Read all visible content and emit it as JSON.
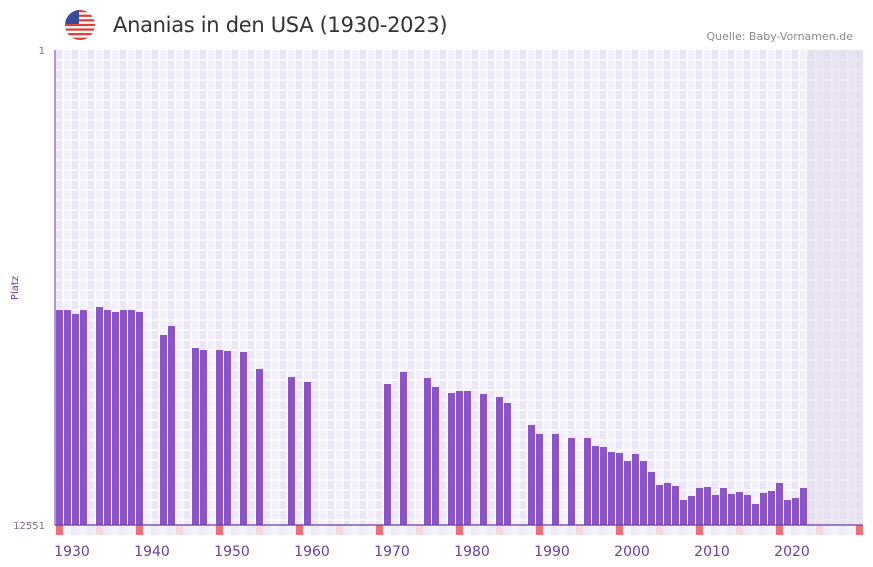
{
  "header": {
    "title": "Ananias in den USA (1930-2023)",
    "source": "Quelle: Baby-Vornamen.de",
    "flag_icon": "us-flag-icon"
  },
  "colors": {
    "bar": "#8b55c6",
    "axis": "#6b3fa0",
    "decade_marker": "#e8737a",
    "half_decade_marker": "#f5d8e0",
    "future_shade": "#e2dcec"
  },
  "chart_data": {
    "type": "bar",
    "title": "Ananias in den USA (1930-2023)",
    "xlabel": "",
    "ylabel": "Platz",
    "y_inverted": true,
    "ylim": [
      1,
      12551
    ],
    "y_tick_labels": [
      "1",
      "12551"
    ],
    "xlim": [
      1930,
      2030
    ],
    "x_tick_labels": [
      "1930",
      "1940",
      "1950",
      "1960",
      "1970",
      "1980",
      "1990",
      "2000",
      "2010",
      "2020"
    ],
    "shaded_from_year": 2024,
    "years": [
      1930,
      1931,
      1932,
      1933,
      1934,
      1935,
      1936,
      1937,
      1938,
      1939,
      1940,
      1941,
      1942,
      1943,
      1944,
      1945,
      1946,
      1947,
      1948,
      1949,
      1950,
      1951,
      1952,
      1953,
      1954,
      1955,
      1956,
      1957,
      1958,
      1959,
      1960,
      1961,
      1962,
      1963,
      1964,
      1965,
      1966,
      1967,
      1968,
      1969,
      1970,
      1971,
      1972,
      1973,
      1974,
      1975,
      1976,
      1977,
      1978,
      1979,
      1980,
      1981,
      1982,
      1983,
      1984,
      1985,
      1986,
      1987,
      1988,
      1989,
      1990,
      1991,
      1992,
      1993,
      1994,
      1995,
      1996,
      1997,
      1998,
      1999,
      2000,
      2001,
      2002,
      2003,
      2004,
      2005,
      2006,
      2007,
      2008,
      2009,
      2010,
      2011,
      2012,
      2013,
      2014,
      2015,
      2016,
      2017,
      2018,
      2019,
      2020,
      2021,
      2022,
      2023
    ],
    "ranks": [
      6870,
      6870,
      6976,
      6870,
      null,
      6791,
      6870,
      6923,
      6870,
      6870,
      6923,
      null,
      null,
      7531,
      7293,
      null,
      null,
      7874,
      7927,
      null,
      7927,
      7953,
      null,
      7980,
      null,
      8429,
      null,
      null,
      null,
      8640,
      null,
      8773,
      null,
      null,
      null,
      null,
      null,
      null,
      null,
      null,
      null,
      8826,
      null,
      8508,
      null,
      null,
      8667,
      8905,
      null,
      9063,
      9010,
      9010,
      null,
      9090,
      null,
      9169,
      9327,
      null,
      null,
      9909,
      10146,
      null,
      10146,
      null,
      10252,
      null,
      10252,
      10463,
      10490,
      10622,
      10649,
      10860,
      10675,
      10860,
      11150,
      11494,
      11441,
      11520,
      11890,
      11785,
      11573,
      11547,
      11758,
      11573,
      11732,
      11679,
      11758,
      11996,
      11705,
      11652,
      11441,
      11890,
      11837,
      11573
    ]
  }
}
